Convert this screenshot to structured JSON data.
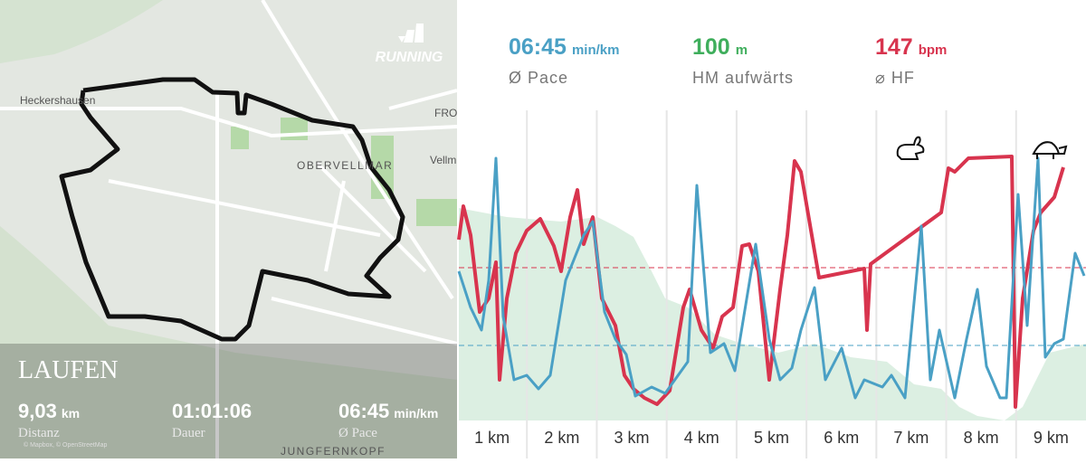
{
  "map": {
    "brand": "RUNNING",
    "places": [
      "Heckershausen",
      "OBERVELLMAR",
      "FRO",
      "Vellm",
      "JUNGFERNKOPF"
    ],
    "attribution": "© Mapbox, © OpenStreetMap",
    "activity": "LAUFEN",
    "stats": [
      {
        "value": "9,03",
        "unit": "km",
        "label": "Distanz"
      },
      {
        "value": "01:01:06",
        "label": "Dauer"
      },
      {
        "value": "06:45",
        "unit": "min/km",
        "label": "Ø Pace"
      }
    ]
  },
  "summary": [
    {
      "value": "06:45",
      "unit": "min/km",
      "label": "Ø Pace",
      "color": "#4aa0c5"
    },
    {
      "value": "100",
      "unit": "m",
      "label": "HM aufwärts",
      "color": "#3fae5c"
    },
    {
      "value": "147",
      "unit": "bpm",
      "label": "⌀ HF",
      "color": "#d8344e"
    }
  ],
  "chart": {
    "x_labels": [
      "1 km",
      "2 km",
      "3 km",
      "4 km",
      "5 km",
      "6 km",
      "7 km",
      "8 km",
      "9 km"
    ]
  }
}
